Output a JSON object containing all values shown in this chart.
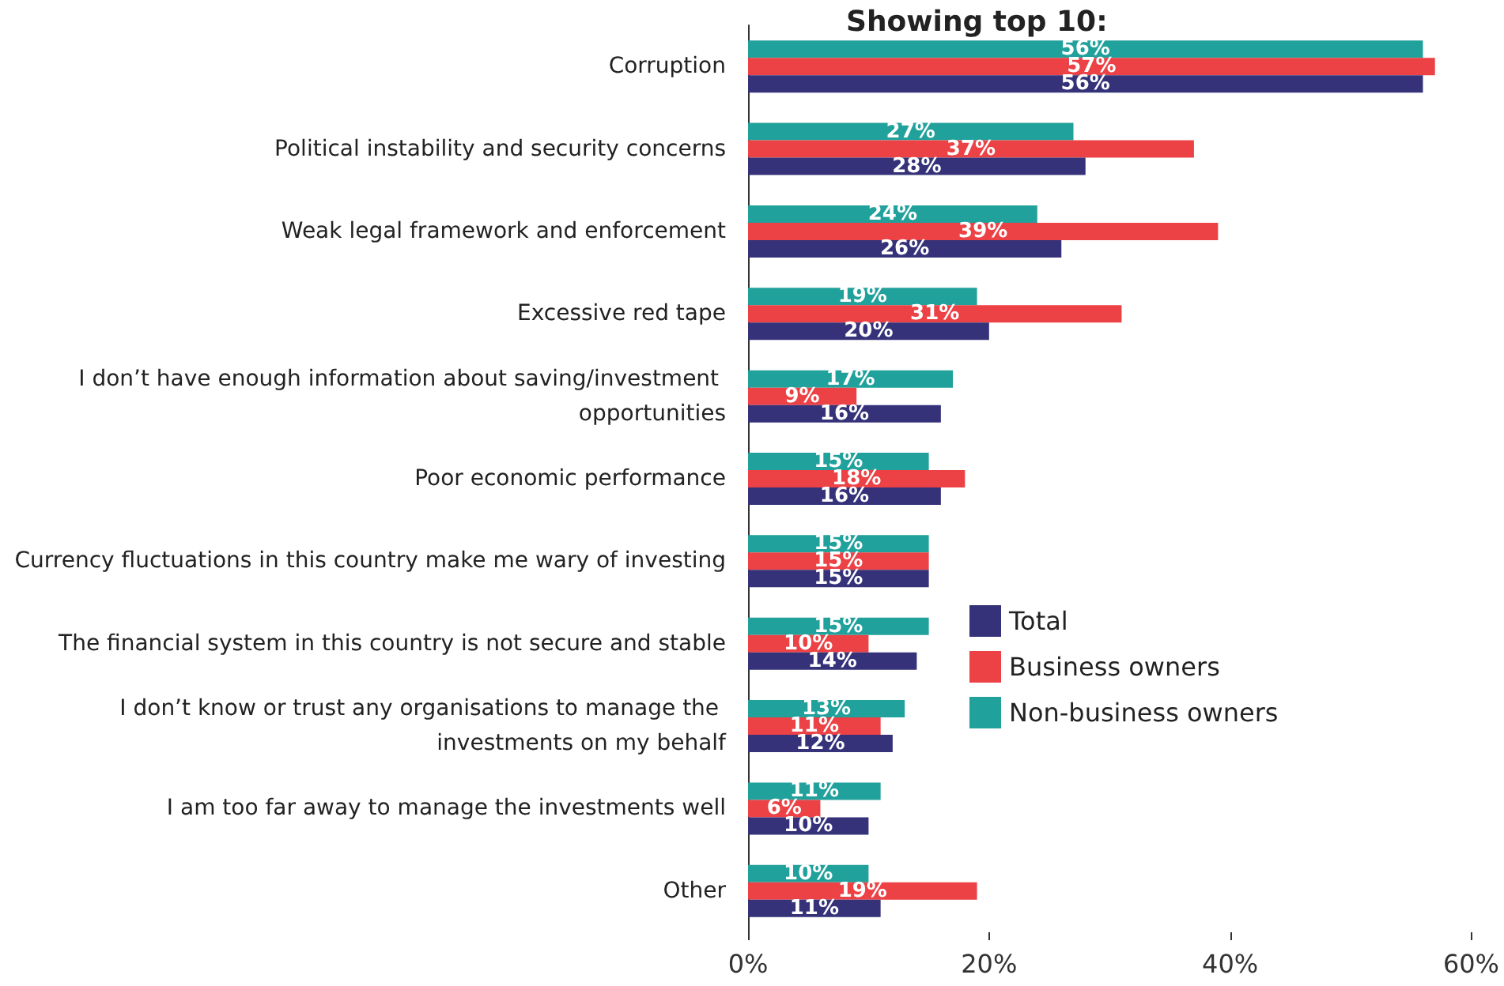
{
  "chart_data": {
    "type": "bar",
    "orientation": "horizontal",
    "title": "Showing top 10:",
    "categories": [
      "Corruption",
      "Political instability and security concerns",
      "Weak legal framework and enforcement",
      "Excessive red tape",
      "I don’t have enough information about saving/investment opportunities",
      "Poor economic performance",
      "Currency fluctuations in this country make me wary of investing",
      "The financial system in this country is not secure and stable",
      "I don’t know or trust any organisations to manage the investments on my behalf",
      "I am too far away to manage the investments well",
      "Other"
    ],
    "series": [
      {
        "name": "Total",
        "color": "#35327a",
        "values": [
          56,
          28,
          26,
          20,
          16,
          16,
          15,
          14,
          12,
          10,
          11
        ],
        "value_labels": [
          "56%",
          "28%",
          "26%",
          "20%",
          "16%",
          "16%",
          "15%",
          "14%",
          "12%",
          "10%",
          "11%"
        ]
      },
      {
        "name": "Business owners",
        "color": "#ec4145",
        "values": [
          57,
          37,
          39,
          31,
          9,
          18,
          15,
          10,
          11,
          6,
          19
        ],
        "value_labels": [
          "57%",
          "37%",
          "39%",
          "31%",
          "9%",
          "18%",
          "15%",
          "10%",
          "11%",
          "6%",
          "19%"
        ]
      },
      {
        "name": "Non-business owners",
        "color": "#21a19c",
        "values": [
          56,
          27,
          24,
          19,
          17,
          15,
          15,
          15,
          13,
          11,
          10
        ],
        "value_labels": [
          "56%",
          "27%",
          "24%",
          "19%",
          "17%",
          "15%",
          "15%",
          "15%",
          "13%",
          "11%",
          "10%"
        ]
      }
    ],
    "xlim": [
      0,
      60
    ],
    "xticks": [
      {
        "value": 0,
        "label": "0%"
      },
      {
        "value": 20,
        "label": "20%"
      },
      {
        "value": 40,
        "label": "40%"
      },
      {
        "value": 60,
        "label": "60%"
      }
    ],
    "grid": false,
    "legend": "right"
  }
}
